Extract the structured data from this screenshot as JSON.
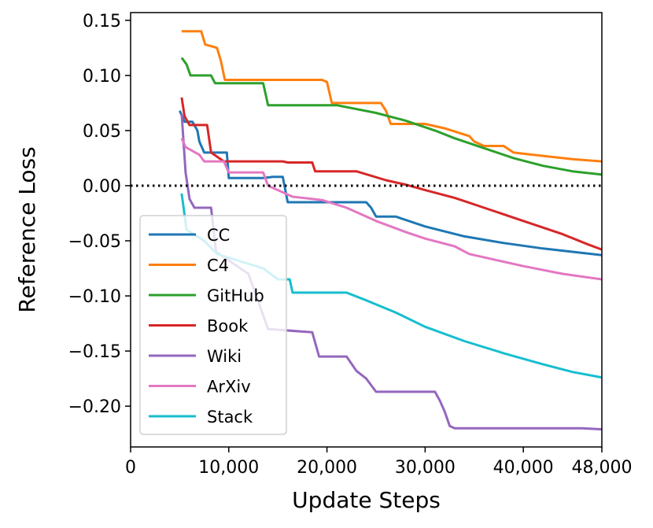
{
  "chart_data": {
    "type": "line",
    "title": "",
    "xlabel": "Update Steps",
    "ylabel": "Reference Loss",
    "xlim": [
      0,
      48000
    ],
    "ylim": [
      -0.237,
      0.157
    ],
    "xticks": [
      0,
      10000,
      20000,
      30000,
      40000,
      48000
    ],
    "xtick_labels": [
      "0",
      "10,000",
      "20,000",
      "30,000",
      "40,000",
      "48,000"
    ],
    "yticks": [
      0.15,
      0.1,
      0.05,
      0.0,
      -0.05,
      -0.1,
      -0.15,
      -0.2
    ],
    "ytick_labels": [
      "0.15",
      "0.10",
      "0.05",
      "0.00",
      "−0.05",
      "−0.10",
      "−0.15",
      "−0.20"
    ],
    "reference_line": 0.0,
    "legend_position": "lower-left",
    "series": [
      {
        "name": "CC",
        "color": "#1f77b4",
        "points": [
          [
            5000,
            0.068
          ],
          [
            5500,
            0.058
          ],
          [
            6300,
            0.058
          ],
          [
            6800,
            0.05
          ],
          [
            7000,
            0.04
          ],
          [
            7500,
            0.03
          ],
          [
            8000,
            0.03
          ],
          [
            9800,
            0.03
          ],
          [
            10000,
            0.007
          ],
          [
            13500,
            0.007
          ],
          [
            14500,
            0.008
          ],
          [
            15500,
            0.008
          ],
          [
            16000,
            -0.015
          ],
          [
            24000,
            -0.015
          ],
          [
            24500,
            -0.02
          ],
          [
            25000,
            -0.028
          ],
          [
            27000,
            -0.028
          ],
          [
            30000,
            -0.037
          ],
          [
            34000,
            -0.046
          ],
          [
            38000,
            -0.052
          ],
          [
            42000,
            -0.057
          ],
          [
            45000,
            -0.06
          ],
          [
            48000,
            -0.063
          ]
        ]
      },
      {
        "name": "C4",
        "color": "#ff7f0e",
        "points": [
          [
            5200,
            0.14
          ],
          [
            7200,
            0.14
          ],
          [
            7600,
            0.128
          ],
          [
            8800,
            0.125
          ],
          [
            9200,
            0.113
          ],
          [
            9600,
            0.096
          ],
          [
            19500,
            0.096
          ],
          [
            20000,
            0.094
          ],
          [
            20500,
            0.075
          ],
          [
            25500,
            0.075
          ],
          [
            26000,
            0.068
          ],
          [
            26500,
            0.056
          ],
          [
            30000,
            0.056
          ],
          [
            32000,
            0.052
          ],
          [
            34500,
            0.045
          ],
          [
            35000,
            0.04
          ],
          [
            36000,
            0.036
          ],
          [
            38000,
            0.036
          ],
          [
            39000,
            0.03
          ],
          [
            42000,
            0.027
          ],
          [
            45000,
            0.024
          ],
          [
            48000,
            0.022
          ]
        ]
      },
      {
        "name": "GitHub",
        "color": "#2ca02c",
        "points": [
          [
            5200,
            0.116
          ],
          [
            5700,
            0.11
          ],
          [
            6100,
            0.1
          ],
          [
            8200,
            0.1
          ],
          [
            8600,
            0.093
          ],
          [
            13500,
            0.093
          ],
          [
            14000,
            0.073
          ],
          [
            21000,
            0.073
          ],
          [
            25000,
            0.066
          ],
          [
            28000,
            0.059
          ],
          [
            31000,
            0.05
          ],
          [
            33000,
            0.043
          ],
          [
            36000,
            0.034
          ],
          [
            39000,
            0.025
          ],
          [
            42000,
            0.018
          ],
          [
            45000,
            0.013
          ],
          [
            48000,
            0.01
          ]
        ]
      },
      {
        "name": "Book",
        "color": "#d62728",
        "points": [
          [
            5200,
            0.08
          ],
          [
            5500,
            0.063
          ],
          [
            6000,
            0.055
          ],
          [
            7800,
            0.055
          ],
          [
            8200,
            0.03
          ],
          [
            9500,
            0.022
          ],
          [
            15500,
            0.022
          ],
          [
            16000,
            0.021
          ],
          [
            18500,
            0.021
          ],
          [
            18800,
            0.013
          ],
          [
            23000,
            0.013
          ],
          [
            26000,
            0.005
          ],
          [
            28000,
            0.001
          ],
          [
            30000,
            -0.004
          ],
          [
            33000,
            -0.011
          ],
          [
            36000,
            -0.02
          ],
          [
            40000,
            -0.032
          ],
          [
            44000,
            -0.044
          ],
          [
            46500,
            -0.053
          ],
          [
            48000,
            -0.058
          ]
        ]
      },
      {
        "name": "Wiki",
        "color": "#9467bd",
        "points": [
          [
            5200,
            0.065
          ],
          [
            5600,
            0.012
          ],
          [
            6000,
            -0.012
          ],
          [
            6500,
            -0.02
          ],
          [
            8200,
            -0.02
          ],
          [
            8700,
            -0.06
          ],
          [
            12000,
            -0.08
          ],
          [
            14000,
            -0.13
          ],
          [
            18500,
            -0.133
          ],
          [
            19200,
            -0.155
          ],
          [
            22000,
            -0.155
          ],
          [
            23000,
            -0.168
          ],
          [
            24000,
            -0.175
          ],
          [
            25000,
            -0.187
          ],
          [
            31000,
            -0.187
          ],
          [
            31500,
            -0.195
          ],
          [
            32000,
            -0.205
          ],
          [
            32500,
            -0.218
          ],
          [
            33000,
            -0.22
          ],
          [
            46000,
            -0.22
          ],
          [
            48000,
            -0.221
          ]
        ]
      },
      {
        "name": "ArXiv",
        "color": "#e377c2",
        "points": [
          [
            5200,
            0.043
          ],
          [
            5600,
            0.035
          ],
          [
            7000,
            0.028
          ],
          [
            7500,
            0.022
          ],
          [
            9500,
            0.022
          ],
          [
            10000,
            0.012
          ],
          [
            13500,
            0.012
          ],
          [
            14000,
            0.0
          ],
          [
            16500,
            -0.01
          ],
          [
            19500,
            -0.013
          ],
          [
            22000,
            -0.02
          ],
          [
            25000,
            -0.032
          ],
          [
            28000,
            -0.042
          ],
          [
            30000,
            -0.048
          ],
          [
            33000,
            -0.055
          ],
          [
            34500,
            -0.062
          ],
          [
            37000,
            -0.067
          ],
          [
            40000,
            -0.073
          ],
          [
            44000,
            -0.08
          ],
          [
            48000,
            -0.085
          ]
        ]
      },
      {
        "name": "Stack",
        "color": "#17becf",
        "points": [
          [
            5200,
            -0.007
          ],
          [
            5700,
            -0.04
          ],
          [
            7500,
            -0.05
          ],
          [
            8800,
            -0.062
          ],
          [
            13500,
            -0.075
          ],
          [
            15000,
            -0.085
          ],
          [
            16200,
            -0.085
          ],
          [
            16500,
            -0.097
          ],
          [
            22000,
            -0.097
          ],
          [
            24000,
            -0.104
          ],
          [
            27000,
            -0.115
          ],
          [
            30000,
            -0.128
          ],
          [
            34000,
            -0.141
          ],
          [
            38000,
            -0.152
          ],
          [
            42000,
            -0.162
          ],
          [
            45000,
            -0.169
          ],
          [
            48000,
            -0.174
          ]
        ]
      }
    ]
  }
}
